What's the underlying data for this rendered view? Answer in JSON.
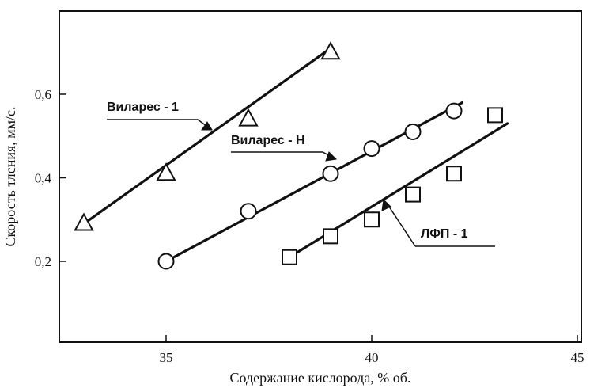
{
  "chart_data": {
    "type": "scatter",
    "xlabel": "Содержание кислорода, % об.",
    "ylabel": "Скорость тлсния, мм/с.",
    "xlim": [
      32.5,
      45
    ],
    "ylim": [
      0.0,
      0.8
    ],
    "x_ticks": [
      35,
      40,
      45
    ],
    "x_tick_labels": [
      "35",
      "40",
      "45"
    ],
    "y_ticks": [
      0.2,
      0.4,
      0.6
    ],
    "y_tick_labels": [
      "0,2",
      "0,4",
      "0,6"
    ],
    "grid": false,
    "series": [
      {
        "name": "Виларес - 1",
        "marker": "triangle",
        "points": [
          [
            33,
            0.29
          ],
          [
            35,
            0.41
          ],
          [
            37,
            0.54
          ],
          [
            39,
            0.7
          ]
        ],
        "fit": [
          [
            33,
            0.29
          ],
          [
            39,
            0.71
          ]
        ]
      },
      {
        "name": "Виларес - Н",
        "marker": "circle",
        "points": [
          [
            35,
            0.2
          ],
          [
            37,
            0.32
          ],
          [
            39,
            0.41
          ],
          [
            40,
            0.47
          ],
          [
            41,
            0.51
          ],
          [
            42,
            0.56
          ]
        ],
        "fit": [
          [
            35,
            0.2
          ],
          [
            42.2,
            0.58
          ]
        ]
      },
      {
        "name": "ЛФП - 1",
        "marker": "square",
        "points": [
          [
            38,
            0.21
          ],
          [
            39,
            0.26
          ],
          [
            40,
            0.3
          ],
          [
            41,
            0.36
          ],
          [
            42,
            0.41
          ],
          [
            43,
            0.55
          ]
        ],
        "fit": [
          [
            38,
            0.21
          ],
          [
            43.3,
            0.53
          ]
        ]
      }
    ]
  }
}
